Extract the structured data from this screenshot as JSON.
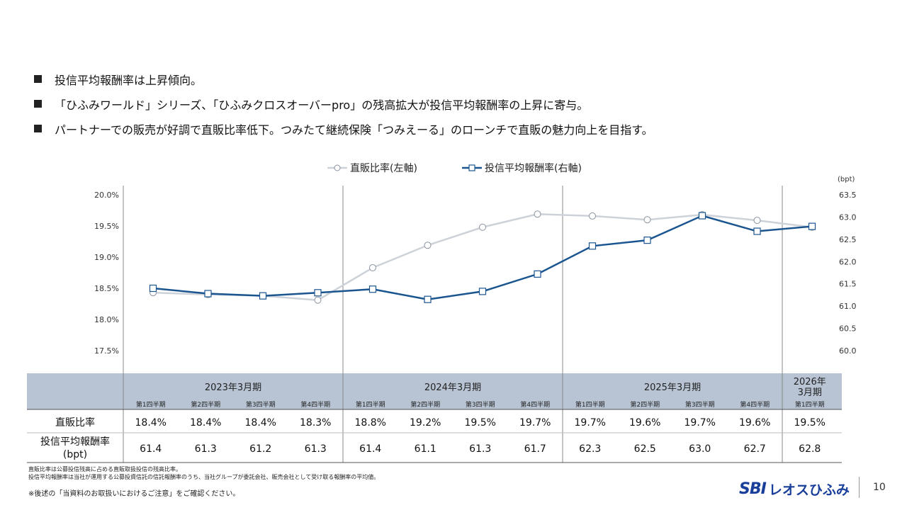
{
  "bullets": [
    "投信平均報酬率は上昇傾向。",
    "「ひふみワールド」シリーズ、「ひふみクロスオーバーpro」の残高拡大が投信平均報酬率の上昇に寄与。",
    "パートナーでの販売が好調で直販比率低下。つみたて継続保険「つみえーる」のローンチで直販の魅力向上を目指す。"
  ],
  "colors": {
    "direct": "#cdd2d9",
    "fee": "#1b5590",
    "header_bg": "#b8c4d4",
    "divider": "#888888"
  },
  "chart_data": {
    "type": "line",
    "legend_position": "top-center",
    "grid": false,
    "x": [
      "第1四半期",
      "第2四半期",
      "第3四半期",
      "第4四半期",
      "第1四半期",
      "第2四半期",
      "第3四半期",
      "第4四半期",
      "第1四半期",
      "第2四半期",
      "第3四半期",
      "第4四半期",
      "第1四半期"
    ],
    "fiscal_years": [
      {
        "label": "2023年3月期",
        "quarters": 4
      },
      {
        "label": "2024年3月期",
        "quarters": 4
      },
      {
        "label": "2025年3月期",
        "quarters": 4
      },
      {
        "label": "2026年3月期",
        "quarters": 1
      }
    ],
    "right_unit": "(bpt)",
    "y_left": {
      "min": 17.5,
      "max": 20.0,
      "ticks": [
        "17.5%",
        "18.0%",
        "18.5%",
        "19.0%",
        "19.5%",
        "20.0%"
      ]
    },
    "y_right": {
      "min": 60.0,
      "max": 63.5,
      "ticks": [
        "60.0",
        "60.5",
        "61.0",
        "61.5",
        "62.0",
        "62.5",
        "63.0",
        "63.5"
      ]
    },
    "series": [
      {
        "name": "直販比率(左軸)",
        "axis": "left",
        "marker": "circle",
        "values": [
          18.43,
          18.4,
          18.38,
          18.31,
          18.83,
          19.19,
          19.48,
          19.69,
          19.66,
          19.6,
          19.68,
          19.59,
          19.48
        ],
        "labels": [
          "18.4%",
          "18.4%",
          "18.4%",
          "18.3%",
          "18.8%",
          "19.2%",
          "19.5%",
          "19.7%",
          "19.7%",
          "19.6%",
          "19.7%",
          "19.6%",
          "19.5%"
        ]
      },
      {
        "name": "投信平均報酬率(右軸)",
        "axis": "right",
        "marker": "square",
        "values": [
          61.4,
          61.28,
          61.23,
          61.3,
          61.38,
          61.15,
          61.33,
          61.72,
          62.35,
          62.48,
          63.03,
          62.68,
          62.79
        ],
        "labels": [
          "61.4",
          "61.3",
          "61.2",
          "61.3",
          "61.4",
          "61.1",
          "61.3",
          "61.7",
          "62.3",
          "62.5",
          "63.0",
          "62.7",
          "62.8"
        ]
      }
    ],
    "table_row_labels": [
      "直販比率",
      "投信平均報酬率\n(bpt)"
    ]
  },
  "notes": [
    "直販比率は公募投信残高に占める直販取扱投信の残高比率。",
    "投信平均報酬率は当社が運用する公募投資信託の信託報酬率のうち、当社グループが委託会社、販売会社として受け取る報酬率の平均値。"
  ],
  "caution": "※後述の「当資料のお取扱いにおけるご注意」をご確認ください。",
  "logo": {
    "sbi": "SBI",
    "name": "レオスひふみ"
  },
  "page_number": "10"
}
